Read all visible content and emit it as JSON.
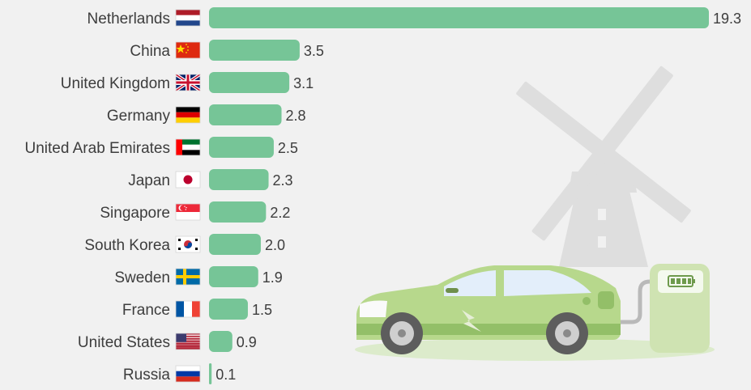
{
  "chart_data": {
    "type": "bar",
    "orientation": "horizontal",
    "categories": [
      "Netherlands",
      "China",
      "United Kingdom",
      "Germany",
      "United Arab Emirates",
      "Japan",
      "Singapore",
      "South Korea",
      "Sweden",
      "France",
      "United States",
      "Russia"
    ],
    "values": [
      19.3,
      3.5,
      3.1,
      2.8,
      2.5,
      2.3,
      2.2,
      2.0,
      1.9,
      1.5,
      0.9,
      0.1
    ],
    "value_labels": [
      "19.3",
      "3.5",
      "3.1",
      "2.8",
      "2.5",
      "2.3",
      "2.2",
      "2.0",
      "1.9",
      "1.5",
      "0.9",
      "0.1"
    ],
    "flags": [
      "netherlands-flag",
      "china-flag",
      "united-kingdom-flag",
      "germany-flag",
      "uae-flag",
      "japan-flag",
      "singapore-flag",
      "south-korea-flag",
      "sweden-flag",
      "france-flag",
      "united-states-flag",
      "russia-flag"
    ],
    "title": "",
    "xlabel": "",
    "ylabel": "",
    "xlim": [
      0,
      19.3
    ],
    "grid": false,
    "legend": "none",
    "colors": {
      "bar": "#76c597",
      "text": "#3d3d3d",
      "background": "#f1f1f1"
    }
  },
  "illustration": {
    "windmill_icon": "windmill-icon",
    "car_icon": "electric-car-icon",
    "charger_icon": "charging-station-icon",
    "colors": {
      "windmill": "#dedede",
      "car_body": "#b7d88c",
      "car_dark": "#93bf68",
      "ground": "#dcebcb"
    }
  }
}
